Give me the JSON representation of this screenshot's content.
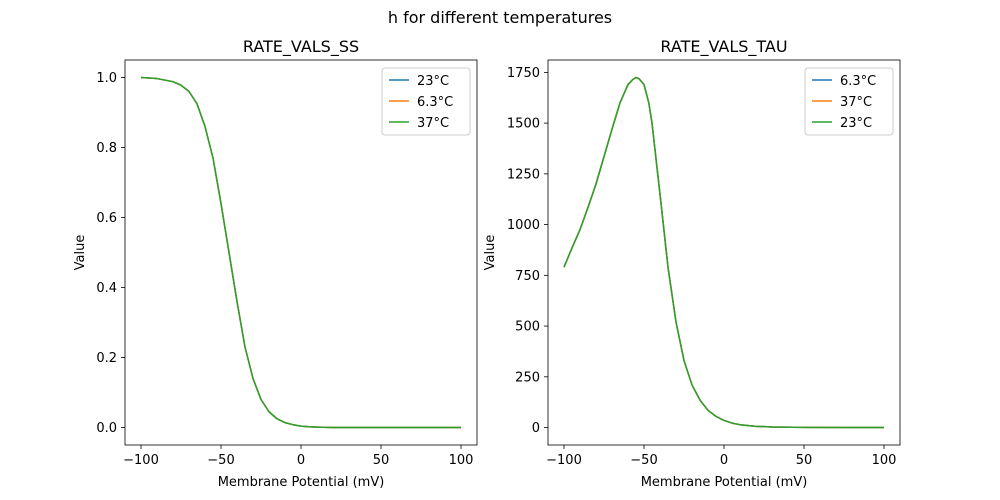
{
  "figure": {
    "suptitle": "h for different temperatures"
  },
  "chart_data": [
    {
      "type": "line",
      "title": "RATE_VALS_SS",
      "xlabel": "Membrane Potential (mV)",
      "ylabel": "Value",
      "xlim": [
        -110,
        110
      ],
      "ylim": [
        -0.05,
        1.05
      ],
      "xticks": [
        -100,
        -50,
        0,
        50,
        100
      ],
      "xtick_labels": [
        "−100",
        "−50",
        "0",
        "50",
        "100"
      ],
      "yticks": [
        0.0,
        0.2,
        0.4,
        0.6,
        0.8,
        1.0
      ],
      "ytick_labels": [
        "0.0",
        "0.2",
        "0.4",
        "0.6",
        "0.8",
        "1.0"
      ],
      "grid": false,
      "legend_position": "top-right",
      "x": [
        -100,
        -90,
        -80,
        -75,
        -70,
        -65,
        -60,
        -55,
        -50,
        -45,
        -40,
        -35,
        -30,
        -25,
        -20,
        -15,
        -10,
        -5,
        0,
        5,
        10,
        20,
        40,
        60,
        80,
        100
      ],
      "series": [
        {
          "name": "23°C",
          "color": "#1f77b4",
          "values": [
            1.0,
            0.997,
            0.988,
            0.978,
            0.96,
            0.925,
            0.86,
            0.77,
            0.64,
            0.5,
            0.36,
            0.23,
            0.14,
            0.08,
            0.045,
            0.025,
            0.014,
            0.008,
            0.004,
            0.002,
            0.001,
            0.0,
            0.0,
            0.0,
            0.0,
            0.0
          ]
        },
        {
          "name": "6.3°C",
          "color": "#ff7f0e",
          "values": [
            1.0,
            0.997,
            0.988,
            0.978,
            0.96,
            0.925,
            0.86,
            0.77,
            0.64,
            0.5,
            0.36,
            0.23,
            0.14,
            0.08,
            0.045,
            0.025,
            0.014,
            0.008,
            0.004,
            0.002,
            0.001,
            0.0,
            0.0,
            0.0,
            0.0,
            0.0
          ]
        },
        {
          "name": "37°C",
          "color": "#2ca02c",
          "values": [
            1.0,
            0.997,
            0.988,
            0.978,
            0.96,
            0.925,
            0.86,
            0.77,
            0.64,
            0.5,
            0.36,
            0.23,
            0.14,
            0.08,
            0.045,
            0.025,
            0.014,
            0.008,
            0.004,
            0.002,
            0.001,
            0.0,
            0.0,
            0.0,
            0.0,
            0.0
          ]
        }
      ]
    },
    {
      "type": "line",
      "title": "RATE_VALS_TAU",
      "xlabel": "Membrane Potential (mV)",
      "ylabel": "Value",
      "xlim": [
        -110,
        110
      ],
      "ylim": [
        -86,
        1811
      ],
      "xticks": [
        -100,
        -50,
        0,
        50,
        100
      ],
      "xtick_labels": [
        "−100",
        "−50",
        "0",
        "50",
        "100"
      ],
      "yticks": [
        0,
        250,
        500,
        750,
        1000,
        1250,
        1500,
        1750
      ],
      "ytick_labels": [
        "0",
        "250",
        "500",
        "750",
        "1000",
        "1250",
        "1500",
        "1750"
      ],
      "grid": false,
      "legend_position": "top-right",
      "x": [
        -100,
        -95,
        -90,
        -85,
        -80,
        -75,
        -70,
        -65,
        -60,
        -57,
        -55,
        -53,
        -50,
        -47,
        -45,
        -40,
        -35,
        -30,
        -25,
        -20,
        -15,
        -10,
        -5,
        0,
        5,
        10,
        20,
        30,
        50,
        75,
        100
      ],
      "series": [
        {
          "name": "6.3°C",
          "color": "#1f77b4",
          "values": [
            790,
            885,
            975,
            1085,
            1200,
            1335,
            1470,
            1600,
            1690,
            1715,
            1725,
            1718,
            1690,
            1600,
            1500,
            1150,
            790,
            520,
            330,
            210,
            135,
            85,
            55,
            35,
            22,
            14,
            6,
            3,
            1,
            0,
            0
          ]
        },
        {
          "name": "37°C",
          "color": "#ff7f0e",
          "values": [
            790,
            885,
            975,
            1085,
            1200,
            1335,
            1470,
            1600,
            1690,
            1715,
            1725,
            1718,
            1690,
            1600,
            1500,
            1150,
            790,
            520,
            330,
            210,
            135,
            85,
            55,
            35,
            22,
            14,
            6,
            3,
            1,
            0,
            0
          ]
        },
        {
          "name": "23°C",
          "color": "#2ca02c",
          "values": [
            790,
            885,
            975,
            1085,
            1200,
            1335,
            1470,
            1600,
            1690,
            1715,
            1725,
            1718,
            1690,
            1600,
            1500,
            1150,
            790,
            520,
            330,
            210,
            135,
            85,
            55,
            35,
            22,
            14,
            6,
            3,
            1,
            0,
            0
          ]
        }
      ]
    }
  ]
}
